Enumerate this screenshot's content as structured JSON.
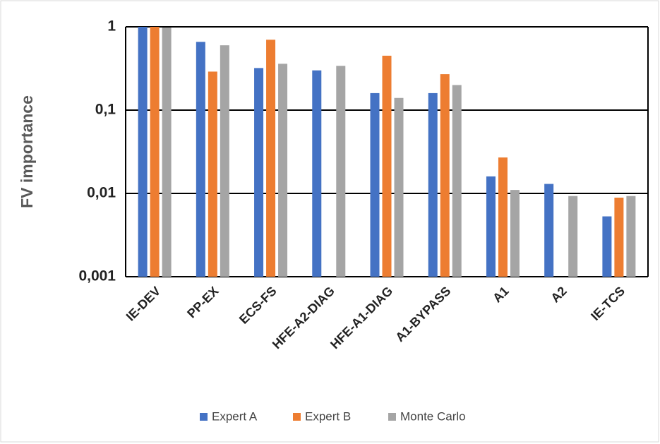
{
  "chart_data": {
    "type": "bar",
    "y_label": "FV importance",
    "categories": [
      "IE-DEV",
      "PP-EX",
      "ECS-FS",
      "HFE-A2-DIAG",
      "HFE-A1-DIAG",
      "A1-BYPASS",
      "A1",
      "A2",
      "IE-TCS"
    ],
    "series": [
      {
        "name": "Expert A",
        "color": "#4472c4",
        "values": [
          1,
          0.66,
          0.32,
          0.3,
          0.16,
          0.16,
          0.016,
          0.013,
          0.0053
        ]
      },
      {
        "name": "Expert B",
        "color": "#ed7d31",
        "values": [
          1,
          0.29,
          0.7,
          null,
          0.45,
          0.27,
          0.027,
          null,
          0.0089
        ]
      },
      {
        "name": "Monte Carlo",
        "color": "#a5a5a5",
        "values": [
          0.98,
          0.6,
          0.36,
          0.34,
          0.14,
          0.2,
          0.011,
          0.0093,
          0.0093
        ]
      }
    ],
    "ylim": [
      0.001,
      1
    ],
    "yticks": [
      {
        "value": 0.001,
        "label": "0,001"
      },
      {
        "value": 0.01,
        "label": "0,01"
      },
      {
        "value": 0.1,
        "label": "0,1"
      },
      1
    ],
    "yscale": "log",
    "grid": true,
    "legend": "bottom"
  }
}
